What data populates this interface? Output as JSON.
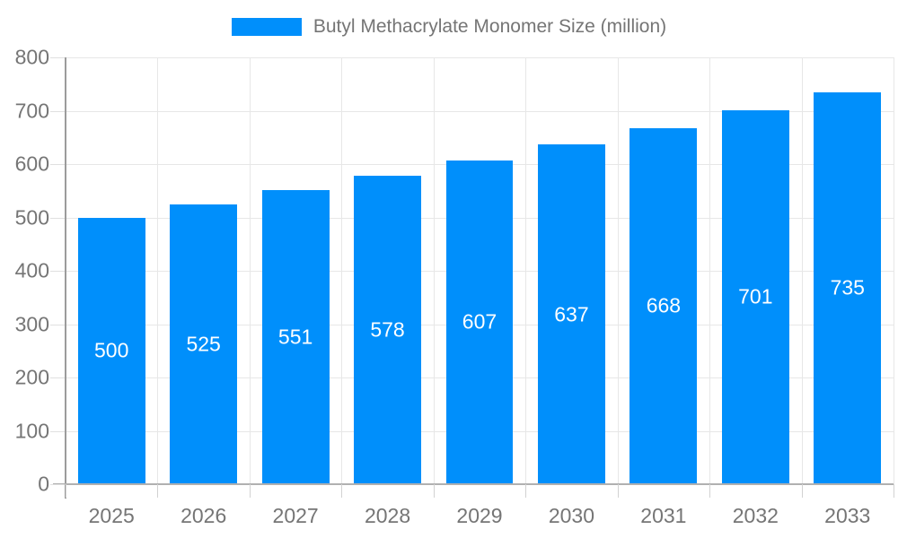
{
  "chart_data": {
    "type": "bar",
    "title": "Butyl Methacrylate Monomer Size (million)",
    "legend": {
      "position": "top",
      "entries": [
        {
          "label": "Butyl Methacrylate Monomer Size (million)",
          "color": "#008FFB"
        }
      ]
    },
    "categories": [
      "2025",
      "2026",
      "2027",
      "2028",
      "2029",
      "2030",
      "2031",
      "2032",
      "2033"
    ],
    "series": [
      {
        "name": "Butyl Methacrylate Monomer Size (million)",
        "values": [
          500,
          525,
          551,
          578,
          607,
          637,
          668,
          701,
          735
        ]
      }
    ],
    "data_labels": [
      "500",
      "525",
      "551",
      "578",
      "607",
      "637",
      "668",
      "701",
      "735"
    ],
    "xlabel": "",
    "ylabel": "",
    "ylim": [
      0,
      800
    ],
    "ytick_step": 100,
    "ytick_labels": [
      "0",
      "100",
      "200",
      "300",
      "400",
      "500",
      "600",
      "700",
      "800"
    ],
    "grid": true,
    "colors": {
      "bar": "#008FFB",
      "data_label_text": "#ffffff",
      "axis_text": "#757575",
      "gridline": "#e7e7e7",
      "axis_line": "#9c9c9c"
    }
  }
}
